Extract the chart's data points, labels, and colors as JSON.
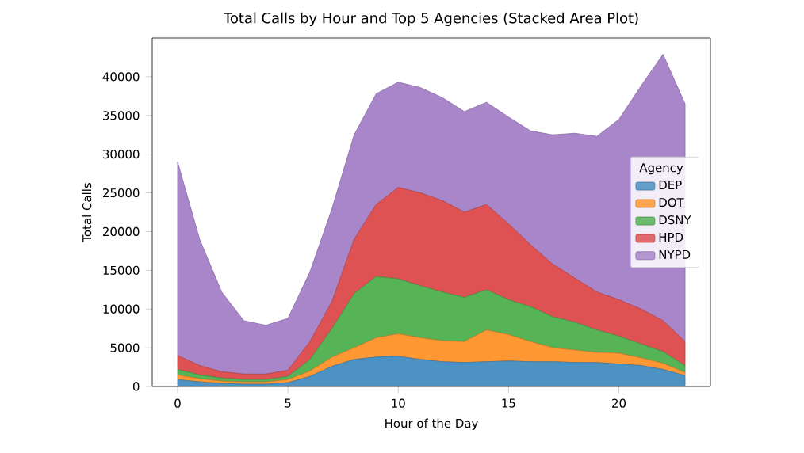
{
  "chart_data": {
    "type": "area",
    "stacked": true,
    "title": "Total Calls by Hour and Top 5 Agencies (Stacked Area Plot)",
    "xlabel": "Hour of the Day",
    "ylabel": "Total Calls",
    "legend_title": "Agency",
    "legend": "right",
    "x": [
      0,
      1,
      2,
      3,
      4,
      5,
      6,
      7,
      8,
      9,
      10,
      11,
      12,
      13,
      14,
      15,
      16,
      17,
      18,
      19,
      20,
      21,
      22,
      23
    ],
    "xlim": [
      -1.15,
      24.15
    ],
    "xticks": [
      0,
      5,
      10,
      15,
      20
    ],
    "ylim": [
      0,
      45000
    ],
    "yticks": [
      0,
      5000,
      10000,
      15000,
      20000,
      25000,
      30000,
      35000,
      40000
    ],
    "series": [
      {
        "name": "DEP",
        "color": "#4c92c3",
        "values": [
          900,
          600,
          400,
          300,
          300,
          500,
          1300,
          2600,
          3500,
          3800,
          3900,
          3500,
          3200,
          3100,
          3200,
          3300,
          3200,
          3200,
          3100,
          3100,
          2900,
          2700,
          2200,
          1400
        ]
      },
      {
        "name": "DOT",
        "color": "#ff9833",
        "values": [
          600,
          400,
          300,
          300,
          300,
          400,
          700,
          1200,
          1500,
          2500,
          2900,
          2800,
          2700,
          2700,
          4100,
          3400,
          2600,
          1800,
          1600,
          1300,
          1400,
          1000,
          800,
          400
        ]
      },
      {
        "name": "DSNY",
        "color": "#56b356",
        "values": [
          700,
          500,
          400,
          300,
          300,
          400,
          1500,
          3700,
          7000,
          7900,
          7100,
          6700,
          6300,
          5700,
          5200,
          4500,
          4500,
          4000,
          3600,
          2900,
          2200,
          1800,
          1500,
          900
        ]
      },
      {
        "name": "HPD",
        "color": "#de5253",
        "values": [
          1800,
          1200,
          800,
          700,
          700,
          800,
          2300,
          3500,
          7000,
          9300,
          11800,
          12000,
          11800,
          11000,
          11000,
          9800,
          8000,
          6800,
          5700,
          4900,
          4700,
          4500,
          4000,
          3100
        ]
      },
      {
        "name": "NYPD",
        "color": "#a985ca",
        "values": [
          25000,
          16300,
          10300,
          6900,
          6300,
          6700,
          9000,
          12000,
          13500,
          14300,
          13600,
          13600,
          13300,
          13000,
          13200,
          13800,
          14700,
          16700,
          18700,
          20100,
          23300,
          28800,
          34400,
          30700
        ]
      }
    ]
  }
}
